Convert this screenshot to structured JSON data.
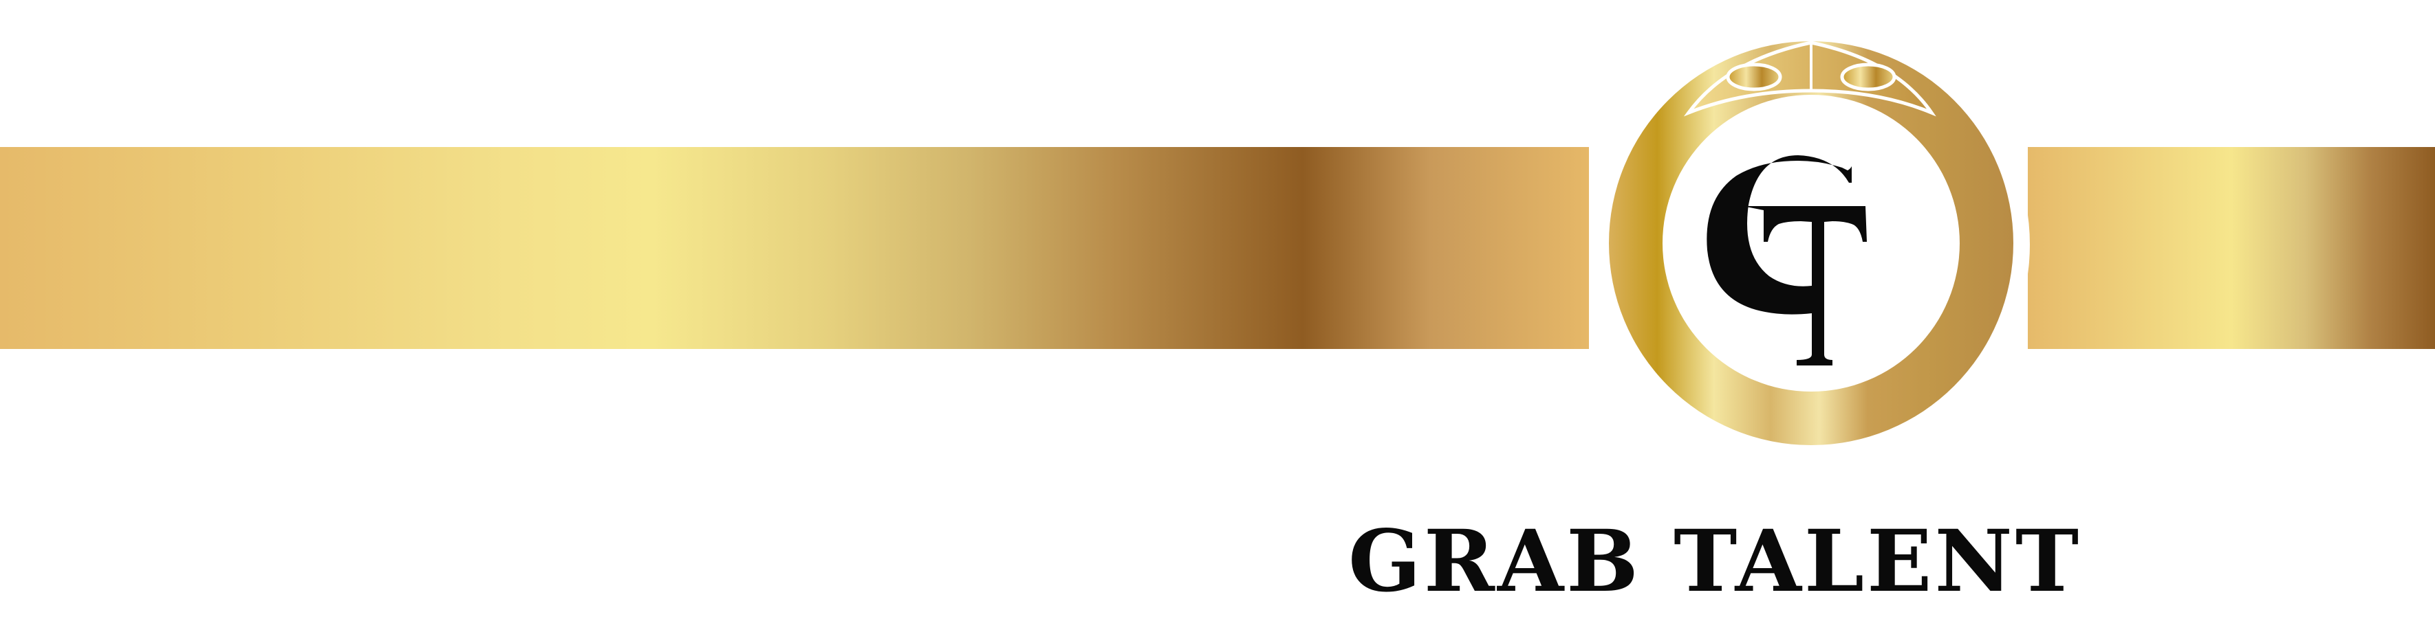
{
  "logo": {
    "monogram_letters": "GT",
    "brand_name": "GRAB TALENT",
    "colors": {
      "gold_light": "#f6e88e",
      "gold_mid": "#e6ba6a",
      "gold_dark": "#8f5c22",
      "ring_gold": "#c9a35a",
      "text": "#0a0a0a",
      "background": "#ffffff"
    },
    "icons": [
      "crown-icon",
      "ring-icon",
      "gt-monogram-icon"
    ]
  }
}
